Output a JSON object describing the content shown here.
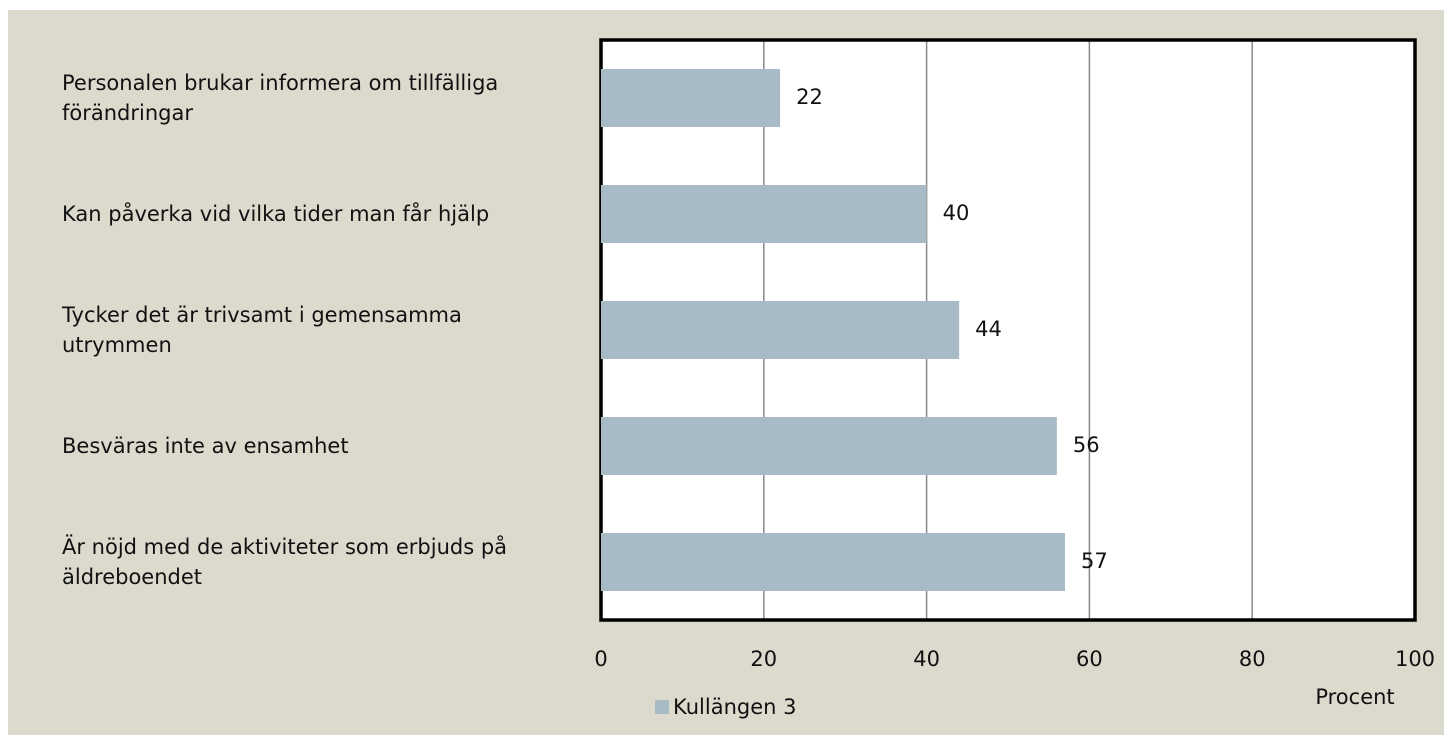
{
  "chart_data": {
    "type": "barh",
    "categories": [
      "Personalen brukar informera om tillfälliga förändringar",
      "Kan påverka vid vilka tider man får hjälp",
      "Tycker det är trivsamt i gemensamma utrymmen",
      "Besväras inte av ensamhet",
      "Är nöjd med de aktiviteter som erbjuds på äldreboendet"
    ],
    "series": [
      {
        "name": "Kullängen 3",
        "color": "#a7bac5",
        "values": [
          22,
          40,
          44,
          56,
          57
        ]
      }
    ],
    "xlim": [
      0,
      100
    ],
    "xticks": [
      0,
      20,
      40,
      60,
      80,
      100
    ],
    "xlabel": "Procent",
    "grid": true,
    "legend": "bottom"
  }
}
